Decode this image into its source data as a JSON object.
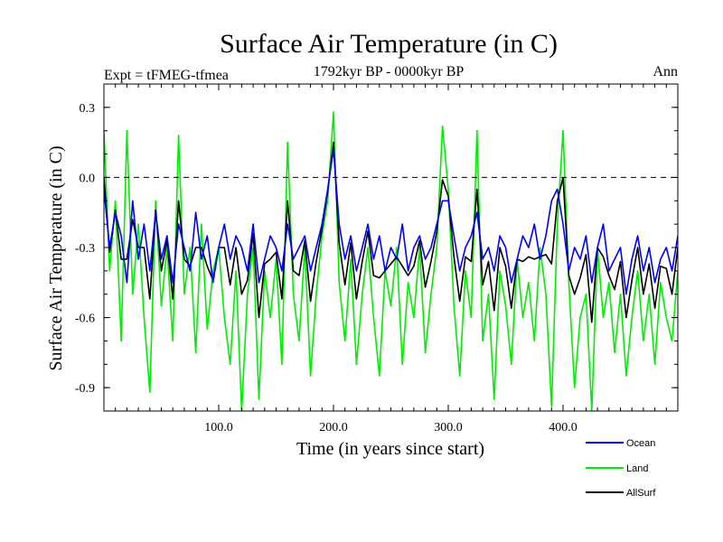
{
  "chart_data": {
    "type": "line",
    "title": "Surface Air Temperature (in C)",
    "subtitle_left": "Expt = tFMEG-tfmea",
    "subtitle_center": "1792kyr BP - 0000kyr BP",
    "subtitle_right": "Ann",
    "xlabel": "Time (in years since start)",
    "ylabel": "Surface Air Temperature (in C)",
    "xlim": [
      0,
      500
    ],
    "ylim": [
      -1.0,
      0.4
    ],
    "xticks": [
      100,
      200,
      300,
      400
    ],
    "xtick_labels": [
      "100.0",
      "200.0",
      "300.0",
      "400.0"
    ],
    "yticks": [
      0.3,
      0.0,
      -0.3,
      -0.6,
      -0.9
    ],
    "ytick_labels": [
      "0.3",
      "0.0",
      "-0.3",
      "-0.6",
      "-0.9"
    ],
    "reference_line": 0.0,
    "legend_position": "bottom-right",
    "series": [
      {
        "name": "Ocean",
        "color": "#0000ff",
        "x": [
          0,
          5,
          10,
          15,
          20,
          25,
          30,
          35,
          40,
          45,
          50,
          55,
          60,
          65,
          70,
          75,
          80,
          85,
          90,
          95,
          100,
          105,
          110,
          115,
          120,
          125,
          130,
          135,
          140,
          145,
          150,
          155,
          160,
          165,
          170,
          175,
          180,
          185,
          190,
          195,
          200,
          205,
          210,
          215,
          220,
          225,
          230,
          235,
          240,
          245,
          250,
          255,
          260,
          265,
          270,
          275,
          280,
          285,
          290,
          295,
          300,
          305,
          310,
          315,
          320,
          325,
          330,
          335,
          340,
          345,
          350,
          355,
          360,
          365,
          370,
          375,
          380,
          385,
          390,
          395,
          400,
          405,
          410,
          415,
          420,
          425,
          430,
          435,
          440,
          445,
          450,
          455,
          460,
          465,
          470,
          475,
          480,
          485,
          490,
          495,
          500
        ],
        "y": [
          -0.05,
          -0.3,
          -0.15,
          -0.25,
          -0.45,
          -0.1,
          -0.35,
          -0.2,
          -0.4,
          -0.15,
          -0.35,
          -0.25,
          -0.45,
          -0.2,
          -0.3,
          -0.4,
          -0.15,
          -0.35,
          -0.25,
          -0.45,
          -0.3,
          -0.2,
          -0.35,
          -0.25,
          -0.3,
          -0.4,
          -0.2,
          -0.45,
          -0.35,
          -0.25,
          -0.3,
          -0.4,
          -0.2,
          -0.35,
          -0.3,
          -0.25,
          -0.4,
          -0.3,
          -0.2,
          -0.05,
          0.12,
          -0.2,
          -0.35,
          -0.25,
          -0.4,
          -0.3,
          -0.2,
          -0.35,
          -0.25,
          -0.4,
          -0.3,
          -0.35,
          -0.2,
          -0.4,
          -0.3,
          -0.25,
          -0.35,
          -0.3,
          -0.2,
          -0.1,
          -0.1,
          -0.25,
          -0.4,
          -0.3,
          -0.25,
          -0.15,
          -0.35,
          -0.3,
          -0.4,
          -0.25,
          -0.3,
          -0.45,
          -0.35,
          -0.25,
          -0.3,
          -0.2,
          -0.35,
          -0.25,
          -0.1,
          -0.05,
          -0.2,
          -0.4,
          -0.3,
          -0.35,
          -0.25,
          -0.45,
          -0.3,
          -0.2,
          -0.4,
          -0.35,
          -0.3,
          -0.5,
          -0.35,
          -0.25,
          -0.4,
          -0.3,
          -0.45,
          -0.35,
          -0.3,
          -0.4,
          -0.25
        ]
      },
      {
        "name": "Land",
        "color": "#00ee00",
        "x": [
          0,
          5,
          10,
          15,
          20,
          25,
          30,
          35,
          40,
          45,
          50,
          55,
          60,
          65,
          70,
          75,
          80,
          85,
          90,
          95,
          100,
          105,
          110,
          115,
          120,
          125,
          130,
          135,
          140,
          145,
          150,
          155,
          160,
          165,
          170,
          175,
          180,
          185,
          190,
          195,
          200,
          205,
          210,
          215,
          220,
          225,
          230,
          235,
          240,
          245,
          250,
          255,
          260,
          265,
          270,
          275,
          280,
          285,
          290,
          295,
          300,
          305,
          310,
          315,
          320,
          325,
          330,
          335,
          340,
          345,
          350,
          355,
          360,
          365,
          370,
          375,
          380,
          385,
          390,
          395,
          400,
          405,
          410,
          415,
          420,
          425,
          430,
          435,
          440,
          445,
          450,
          455,
          460,
          465,
          470,
          475,
          480,
          485,
          490,
          495,
          500
        ],
        "y": [
          0.2,
          -0.4,
          -0.1,
          -0.7,
          0.2,
          -0.5,
          -0.2,
          -0.6,
          -0.92,
          -0.1,
          -0.55,
          -0.3,
          -0.7,
          0.18,
          -0.5,
          -0.3,
          -0.75,
          -0.2,
          -0.65,
          -0.4,
          -0.3,
          -0.6,
          -0.8,
          -0.4,
          -1.0,
          -0.5,
          -0.3,
          -0.95,
          -0.4,
          -0.6,
          -0.35,
          -0.8,
          0.15,
          -0.5,
          -0.7,
          -0.3,
          -0.85,
          -0.5,
          -0.25,
          -0.1,
          0.28,
          -0.45,
          -0.7,
          -0.35,
          -0.8,
          -0.5,
          -0.3,
          -0.6,
          -0.85,
          -0.4,
          -0.55,
          -0.3,
          -0.8,
          -0.45,
          -0.6,
          -0.3,
          -0.75,
          -0.5,
          -0.3,
          0.22,
          -0.05,
          -0.55,
          -0.85,
          -0.4,
          -0.6,
          0.2,
          -0.7,
          -0.5,
          -0.95,
          -0.4,
          -0.55,
          -0.8,
          -0.35,
          -0.6,
          -0.45,
          -0.7,
          -0.3,
          -0.5,
          -0.98,
          -0.2,
          0.2,
          -0.45,
          -0.9,
          -0.6,
          -0.5,
          -1.0,
          -0.3,
          -0.6,
          -0.45,
          -0.75,
          -0.5,
          -0.85,
          -0.6,
          -0.4,
          -0.7,
          -0.5,
          -0.8,
          -0.45,
          -0.6,
          -0.7,
          -0.4
        ]
      },
      {
        "name": "AllSurf",
        "color": "#000000",
        "x": [
          0,
          5,
          10,
          15,
          20,
          25,
          30,
          35,
          40,
          45,
          50,
          55,
          60,
          65,
          70,
          75,
          80,
          85,
          90,
          95,
          100,
          105,
          110,
          115,
          120,
          125,
          130,
          135,
          140,
          145,
          150,
          155,
          160,
          165,
          170,
          175,
          180,
          185,
          190,
          195,
          200,
          205,
          210,
          215,
          220,
          225,
          230,
          235,
          240,
          245,
          250,
          255,
          260,
          265,
          270,
          275,
          280,
          285,
          290,
          295,
          300,
          305,
          310,
          315,
          320,
          325,
          330,
          335,
          340,
          345,
          350,
          355,
          360,
          365,
          370,
          375,
          380,
          385,
          390,
          395,
          400,
          405,
          410,
          415,
          420,
          425,
          430,
          435,
          440,
          445,
          450,
          455,
          460,
          465,
          470,
          475,
          480,
          485,
          490,
          495,
          500
        ],
        "y": [
          0.0,
          -0.32,
          -0.14,
          -0.35,
          -0.35,
          -0.18,
          -0.3,
          -0.3,
          -0.52,
          -0.14,
          -0.4,
          -0.27,
          -0.52,
          -0.1,
          -0.35,
          -0.38,
          -0.3,
          -0.3,
          -0.38,
          -0.44,
          -0.3,
          -0.3,
          -0.46,
          -0.3,
          -0.5,
          -0.44,
          -0.24,
          -0.6,
          -0.37,
          -0.35,
          -0.32,
          -0.52,
          -0.1,
          -0.4,
          -0.42,
          -0.27,
          -0.53,
          -0.36,
          -0.22,
          -0.06,
          0.15,
          -0.28,
          -0.46,
          -0.28,
          -0.52,
          -0.36,
          -0.23,
          -0.42,
          -0.43,
          -0.4,
          -0.37,
          -0.34,
          -0.38,
          -0.42,
          -0.38,
          -0.27,
          -0.47,
          -0.36,
          -0.23,
          -0.01,
          -0.08,
          -0.34,
          -0.53,
          -0.34,
          -0.36,
          -0.05,
          -0.46,
          -0.36,
          -0.57,
          -0.3,
          -0.38,
          -0.56,
          -0.35,
          -0.36,
          -0.34,
          -0.35,
          -0.34,
          -0.33,
          -0.37,
          -0.1,
          0.0,
          -0.42,
          -0.5,
          -0.43,
          -0.33,
          -0.62,
          -0.3,
          -0.34,
          -0.42,
          -0.48,
          -0.36,
          -0.6,
          -0.44,
          -0.3,
          -0.5,
          -0.37,
          -0.56,
          -0.38,
          -0.39,
          -0.5,
          -0.3
        ]
      }
    ]
  }
}
